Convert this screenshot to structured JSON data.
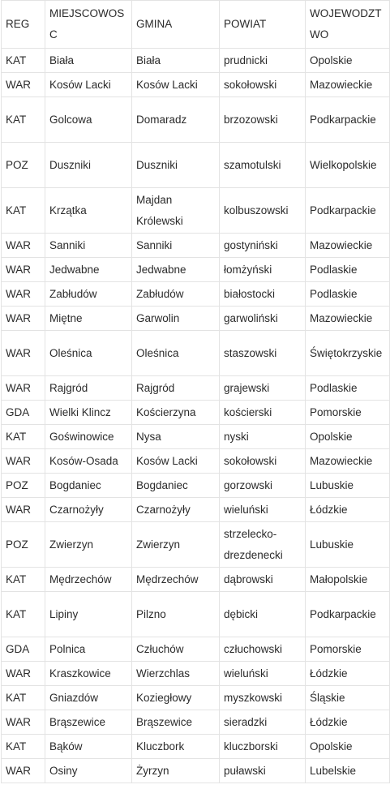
{
  "headers": [
    "REG",
    "MIEJSCOWOSC",
    "GMINA",
    "POWIAT",
    "WOJEWODZTWO"
  ],
  "rows": [
    [
      "KAT",
      "Biała",
      "Biała",
      "prudnicki",
      "Opolskie"
    ],
    [
      "WAR",
      "Kosów Lacki",
      "Kosów Lacki",
      "sokołowski",
      "Mazowieckie"
    ],
    [
      "KAT",
      "Golcowa",
      "Domaradz",
      "brzozowski",
      "Podkarpackie"
    ],
    [
      "POZ",
      "Duszniki",
      "Duszniki",
      "szamotulski",
      "Wielkopolskie"
    ],
    [
      "KAT",
      "Krzątka",
      "Majdan Królewski",
      "kolbuszowski",
      "Podkarpackie"
    ],
    [
      "WAR",
      "Sanniki",
      "Sanniki",
      "gostyniński",
      "Mazowieckie"
    ],
    [
      "WAR",
      "Jedwabne",
      "Jedwabne",
      "łomżyński",
      "Podlaskie"
    ],
    [
      "WAR",
      "Zabłudów",
      "Zabłudów",
      "białostocki",
      "Podlaskie"
    ],
    [
      "WAR",
      "Miętne",
      "Garwolin",
      "garwoliński",
      "Mazowieckie"
    ],
    [
      "WAR",
      "Oleśnica",
      "Oleśnica",
      "staszowski",
      "Świętokrzyskie"
    ],
    [
      "WAR",
      "Rajgród",
      "Rajgród",
      "grajewski",
      "Podlaskie"
    ],
    [
      "GDA",
      "Wielki Klincz",
      "Kościerzyna",
      "kościerski",
      "Pomorskie"
    ],
    [
      "KAT",
      "Goświnowice",
      "Nysa",
      "nyski",
      "Opolskie"
    ],
    [
      "WAR",
      "Kosów-Osada",
      "Kosów Lacki",
      "sokołowski",
      "Mazowieckie"
    ],
    [
      "POZ",
      "Bogdaniec",
      "Bogdaniec",
      "gorzowski",
      "Lubuskie"
    ],
    [
      "WAR",
      "Czarnożyły",
      "Czarnożyły",
      "wieluński",
      "Łódzkie"
    ],
    [
      "POZ",
      "Zwierzyn",
      "Zwierzyn",
      "strzelecko-drezdenecki",
      "Lubuskie"
    ],
    [
      "KAT",
      "Mędrzechów",
      "Mędrzechów",
      "dąbrowski",
      "Małopolskie"
    ],
    [
      "KAT",
      "Lipiny",
      "Pilzno",
      "dębicki",
      "Podkarpackie"
    ],
    [
      "GDA",
      "Polnica",
      "Człuchów",
      "człuchowski",
      "Pomorskie"
    ],
    [
      "WAR",
      "Kraszkowice",
      "Wierzchlas",
      "wieluński",
      "Łódzkie"
    ],
    [
      "KAT",
      "Gniazdów",
      "Koziegłowy",
      "myszkowski",
      "Śląskie"
    ],
    [
      "WAR",
      "Brąszewice",
      "Brąszewice",
      "sieradzki",
      "Łódzkie"
    ],
    [
      "KAT",
      "Bąków",
      "Kluczbork",
      "kluczborski",
      "Opolskie"
    ],
    [
      "WAR",
      "Osiny",
      "Żyrzyn",
      "puławski",
      "Lubelskie"
    ]
  ]
}
